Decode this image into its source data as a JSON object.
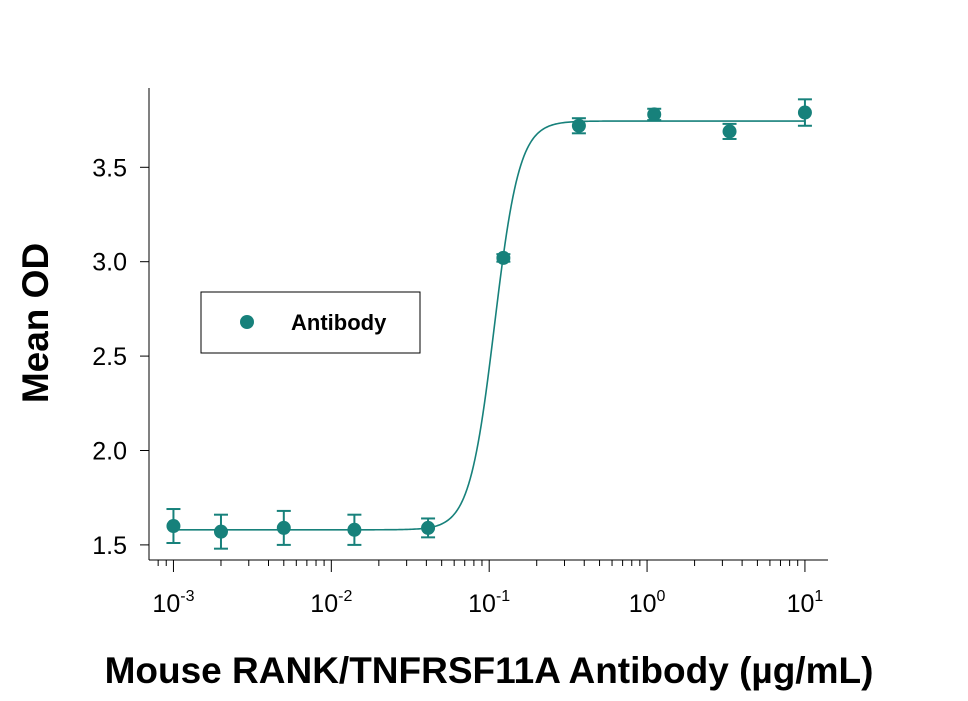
{
  "chart_data": {
    "type": "scatter",
    "xlabel": "Mouse RANK/TNFRSF11A Antibody (µg/mL)",
    "ylabel": "Mean OD",
    "x_scale": "log",
    "xlim": [
      0.0007,
      14
    ],
    "ylim": [
      1.42,
      3.92
    ],
    "x_ticks": [
      {
        "value": 0.001,
        "base": "10",
        "exp": "-3"
      },
      {
        "value": 0.01,
        "base": "10",
        "exp": "-2"
      },
      {
        "value": 0.1,
        "base": "10",
        "exp": "-1"
      },
      {
        "value": 1,
        "base": "10",
        "exp": "0"
      },
      {
        "value": 10,
        "base": "10",
        "exp": "1"
      }
    ],
    "y_ticks": [
      "1.5",
      "2.0",
      "2.5",
      "3.0",
      "3.5"
    ],
    "grid": false,
    "legend": {
      "position": "left",
      "entries": [
        "Antibody"
      ]
    },
    "color": "#17817b",
    "series": [
      {
        "name": "Antibody",
        "points": [
          {
            "x": 0.001,
            "y": 1.6,
            "err": 0.09
          },
          {
            "x": 0.002,
            "y": 1.57,
            "err": 0.09
          },
          {
            "x": 0.005,
            "y": 1.59,
            "err": 0.09
          },
          {
            "x": 0.014,
            "y": 1.58,
            "err": 0.08
          },
          {
            "x": 0.041,
            "y": 1.59,
            "err": 0.05
          },
          {
            "x": 0.123,
            "y": 3.02,
            "err": 0.02
          },
          {
            "x": 0.37,
            "y": 3.72,
            "err": 0.04
          },
          {
            "x": 1.11,
            "y": 3.78,
            "err": 0.03
          },
          {
            "x": 3.33,
            "y": 3.69,
            "err": 0.04
          },
          {
            "x": 10,
            "y": 3.79,
            "err": 0.07
          }
        ],
        "fit": {
          "bottom": 1.58,
          "top": 3.745,
          "ec50": 0.108,
          "hill": 5.5
        }
      }
    ]
  }
}
